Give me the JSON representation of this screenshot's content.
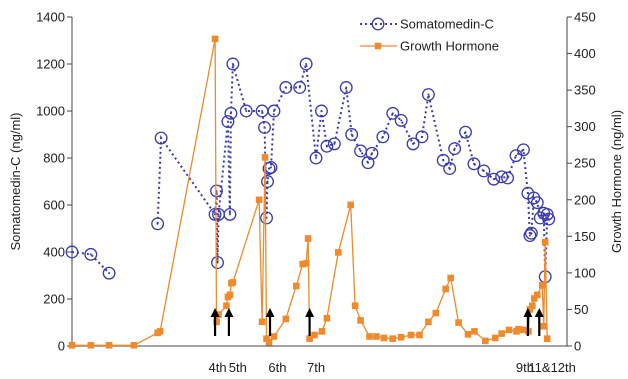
{
  "chart_data": {
    "type": "line",
    "y_left": {
      "label": "Somatomedin-C (ng/ml)",
      "range": [
        0,
        1400
      ],
      "ticks": [
        "0",
        "200",
        "400",
        "600",
        "800",
        "1000",
        "1200",
        "1400"
      ]
    },
    "y_right": {
      "label": "Growth Hormone (ng/ml)",
      "range": [
        0,
        450
      ],
      "ticks": [
        "0",
        "50",
        "100",
        "150",
        "200",
        "250",
        "300",
        "350",
        "400",
        "450"
      ]
    },
    "x_range": [
      0,
      100
    ],
    "legend": {
      "placement": "top-right"
    },
    "events": [
      {
        "x": 29.4,
        "label": "4th",
        "arrow_x": 28.9
      },
      {
        "x": 33.5,
        "label": "5th",
        "arrow_x": 31.7
      },
      {
        "x": 41.5,
        "label": "6th",
        "arrow_x": 40.0
      },
      {
        "x": 49.3,
        "label": "7th",
        "arrow_x": 48.0
      },
      {
        "x": 91.5,
        "label": "9th",
        "arrow_x": 92.1
      },
      {
        "x": 97.0,
        "label": "11&12th",
        "arrow_x": 94.4
      }
    ],
    "series": [
      {
        "name": "Somatomedin-C",
        "axis": "left",
        "color": "#3b3bb0",
        "style": "dotted-circle",
        "segments": [
          [
            [
              0.0,
              400
            ],
            [
              3.8,
              390
            ],
            [
              7.5,
              310
            ]
          ],
          [
            [
              17.3,
              520
            ],
            [
              18.0,
              885
            ],
            [
              28.9,
              560
            ],
            [
              29.2,
              660
            ],
            [
              29.4,
              355
            ],
            [
              29.6,
              560
            ],
            [
              31.5,
              955
            ],
            [
              31.9,
              560
            ],
            [
              32.1,
              990
            ],
            [
              32.5,
              1200
            ],
            [
              35.2,
              1000
            ],
            [
              38.4,
              1000
            ],
            [
              38.9,
              930
            ],
            [
              39.3,
              545
            ],
            [
              39.5,
              700
            ],
            [
              39.8,
              755
            ],
            [
              40.2,
              760
            ],
            [
              40.8,
              1000
            ],
            [
              43.2,
              1100
            ],
            [
              46.0,
              1100
            ],
            [
              47.3,
              1200
            ],
            [
              49.3,
              800
            ],
            [
              50.4,
              1000
            ],
            [
              51.5,
              850
            ],
            [
              53.0,
              860
            ],
            [
              55.4,
              1100
            ],
            [
              56.5,
              900
            ],
            [
              58.3,
              830
            ],
            [
              59.8,
              780
            ],
            [
              60.6,
              820
            ],
            [
              62.8,
              890
            ],
            [
              64.8,
              990
            ],
            [
              66.5,
              960
            ],
            [
              68.9,
              860
            ],
            [
              70.7,
              890
            ],
            [
              72.0,
              1070
            ],
            [
              75.0,
              790
            ],
            [
              76.3,
              755
            ],
            [
              77.3,
              840
            ],
            [
              79.5,
              910
            ],
            [
              81.2,
              775
            ],
            [
              83.2,
              745
            ],
            [
              85.2,
              710
            ],
            [
              86.8,
              720
            ],
            [
              88.0,
              715
            ],
            [
              89.7,
              810
            ],
            [
              91.2,
              835
            ],
            [
              92.1,
              650
            ],
            [
              92.5,
              470
            ],
            [
              92.8,
              480
            ],
            [
              93.3,
              630
            ],
            [
              94.0,
              610
            ],
            [
              94.6,
              545
            ],
            [
              95.3,
              565
            ],
            [
              95.6,
              295
            ],
            [
              96.0,
              560
            ],
            [
              96.3,
              540
            ]
          ]
        ]
      },
      {
        "name": "Growth Hormone",
        "axis": "right",
        "color": "#f08a2c",
        "style": "line-square",
        "segments": [
          [
            [
              0.0,
              1
            ],
            [
              3.8,
              1
            ],
            [
              7.5,
              1
            ],
            [
              12.5,
              1
            ],
            [
              17.3,
              18
            ],
            [
              17.8,
              20
            ],
            [
              28.9,
              420
            ],
            [
              29.2,
              33
            ],
            [
              29.6,
              43
            ],
            [
              31.2,
              55
            ],
            [
              31.5,
              67
            ],
            [
              31.9,
              70
            ],
            [
              32.2,
              86
            ],
            [
              32.5,
              87
            ],
            [
              37.8,
              200
            ],
            [
              38.4,
              33
            ],
            [
              39.0,
              258
            ],
            [
              39.3,
              10
            ],
            [
              39.8,
              5
            ],
            [
              40.8,
              13
            ],
            [
              43.2,
              37
            ],
            [
              45.3,
              82
            ],
            [
              46.6,
              112
            ],
            [
              47.3,
              113
            ],
            [
              47.7,
              147
            ],
            [
              48.0,
              10
            ],
            [
              49.0,
              15
            ],
            [
              50.5,
              20
            ],
            [
              51.5,
              38
            ],
            [
              53.8,
              128
            ],
            [
              56.3,
              193
            ],
            [
              57.2,
              55
            ],
            [
              58.3,
              35
            ],
            [
              60.1,
              13
            ],
            [
              61.5,
              13
            ],
            [
              63.0,
              11
            ],
            [
              64.8,
              10
            ],
            [
              66.5,
              12
            ],
            [
              68.5,
              15
            ],
            [
              70.2,
              15
            ],
            [
              72.0,
              33
            ],
            [
              73.5,
              45
            ],
            [
              75.5,
              78
            ],
            [
              76.5,
              93
            ],
            [
              78.1,
              32
            ],
            [
              80.0,
              16
            ],
            [
              81.3,
              20
            ],
            [
              83.5,
              7
            ],
            [
              85.5,
              11
            ],
            [
              86.8,
              17
            ],
            [
              88.3,
              22
            ],
            [
              89.8,
              20
            ],
            [
              90.2,
              23
            ],
            [
              91.2,
              22
            ],
            [
              92.2,
              20
            ],
            [
              92.5,
              50
            ],
            [
              93.0,
              55
            ],
            [
              93.4,
              65
            ],
            [
              94.0,
              70
            ],
            [
              95.0,
              83
            ],
            [
              95.3,
              27
            ],
            [
              95.6,
              142
            ],
            [
              96.0,
              10
            ]
          ]
        ]
      }
    ]
  }
}
